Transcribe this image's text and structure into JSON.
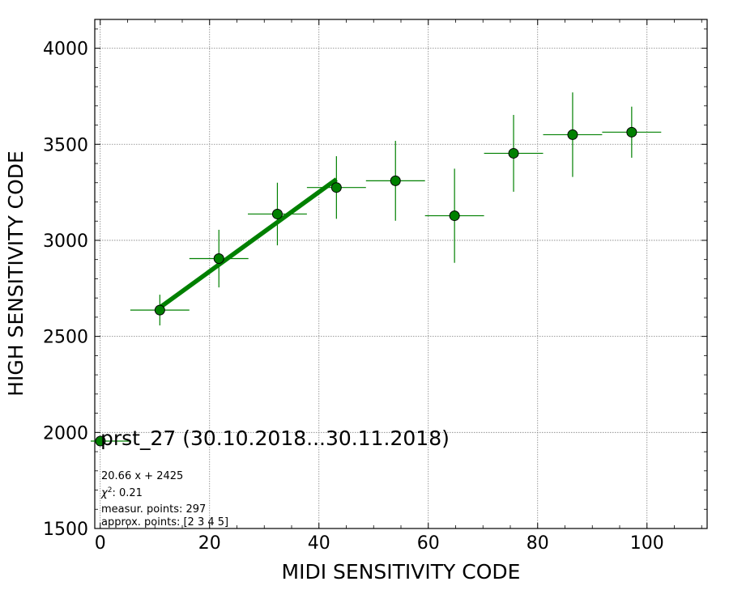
{
  "chart_data": {
    "type": "scatter",
    "xlabel": "MIDI SENSITIVITY CODE",
    "ylabel": "HIGH SENSITIVITY CODE",
    "xlim": [
      -1,
      111
    ],
    "ylim": [
      1500,
      4150
    ],
    "x_ticks": [
      0,
      20,
      40,
      60,
      80,
      100
    ],
    "y_ticks": [
      1500,
      2000,
      2500,
      3000,
      3500,
      4000
    ],
    "grid": true,
    "colors": {
      "points": "#008000",
      "fit": "#008000",
      "edge": "#000000",
      "grid": "#808080"
    },
    "series": [
      {
        "name": "prst_27 (30.10.2018...30.11.2018)",
        "points": [
          {
            "x": 10.9,
            "y": 2637,
            "xerr": 5.4,
            "yerr": 80
          },
          {
            "x": 21.7,
            "y": 2905,
            "xerr": 5.4,
            "yerr": 150
          },
          {
            "x": 32.4,
            "y": 3137,
            "xerr": 5.4,
            "yerr": 163
          },
          {
            "x": 43.2,
            "y": 3275,
            "xerr": 5.4,
            "yerr": 163
          },
          {
            "x": 54.0,
            "y": 3310,
            "xerr": 5.4,
            "yerr": 208
          },
          {
            "x": 64.8,
            "y": 3128,
            "xerr": 5.4,
            "yerr": 245
          },
          {
            "x": 75.6,
            "y": 3453,
            "xerr": 5.4,
            "yerr": 200
          },
          {
            "x": 86.4,
            "y": 3550,
            "xerr": 5.4,
            "yerr": 220
          },
          {
            "x": 97.2,
            "y": 3563,
            "xerr": 5.4,
            "yerr": 133
          }
        ]
      }
    ],
    "fit": {
      "slope": 20.66,
      "intercept": 2425,
      "x_range": [
        10.9,
        43.2
      ]
    },
    "legend": {
      "label": "prst_27 (30.10.2018...30.11.2018)",
      "placement": "lower-left"
    },
    "annotations": [
      "20.66 x + 2425",
      ": 0.21",
      "measur. points: 297",
      "approx. points: [2 3 4 5]"
    ],
    "chi_symbol": "χ",
    "chi_exp": "2"
  }
}
